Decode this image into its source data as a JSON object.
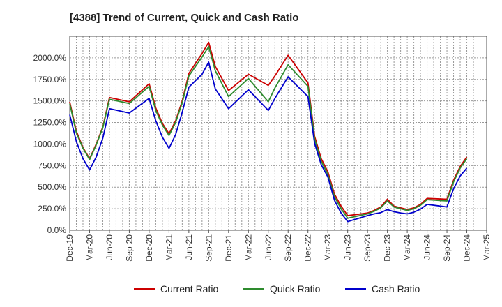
{
  "chart_data": {
    "type": "line",
    "title": "[4388]  Trend of Current, Quick and Cash Ratio",
    "xlabel": "",
    "ylabel": "",
    "ylim": [
      0,
      2250
    ],
    "yticks": [
      0,
      250,
      500,
      750,
      1000,
      1250,
      1500,
      1750,
      2000
    ],
    "ytick_labels": [
      "0.0%",
      "250.0%",
      "500.0%",
      "750.0%",
      "1000.0%",
      "1250.0%",
      "1500.0%",
      "1750.0%",
      "2000.0%"
    ],
    "x_count": 64,
    "xtick_indices": [
      0,
      3,
      6,
      9,
      12,
      15,
      18,
      21,
      24,
      27,
      30,
      33,
      36,
      39,
      42,
      45,
      48,
      51,
      54,
      57,
      60,
      63
    ],
    "xtick_labels": [
      "Dec-19",
      "Mar-20",
      "Jun-20",
      "Sep-20",
      "Dec-20",
      "Mar-21",
      "Jun-21",
      "Sep-21",
      "Dec-21",
      "Mar-22",
      "Jun-22",
      "Sep-22",
      "Dec-22",
      "Mar-23",
      "Jun-23",
      "Sep-23",
      "Dec-23",
      "Mar-24",
      "Jun-24",
      "Sep-24",
      "Dec-24",
      "Mar-25"
    ],
    "grid": true,
    "legend_position": "bottom",
    "series": [
      {
        "name": "Current Ratio",
        "color": "#cc0000",
        "points": [
          [
            0,
            1490
          ],
          [
            1,
            1150
          ],
          [
            2,
            960
          ],
          [
            3,
            830
          ],
          [
            4,
            1000
          ],
          [
            5,
            1200
          ],
          [
            6,
            1540
          ],
          [
            9,
            1490
          ],
          [
            12,
            1700
          ],
          [
            13,
            1420
          ],
          [
            14,
            1240
          ],
          [
            15,
            1120
          ],
          [
            16,
            1270
          ],
          [
            17,
            1500
          ],
          [
            18,
            1820
          ],
          [
            20,
            2050
          ],
          [
            21,
            2180
          ],
          [
            22,
            1900
          ],
          [
            24,
            1620
          ],
          [
            27,
            1810
          ],
          [
            30,
            1680
          ],
          [
            31,
            1790
          ],
          [
            33,
            2030
          ],
          [
            36,
            1710
          ],
          [
            37,
            1090
          ],
          [
            38,
            830
          ],
          [
            39,
            680
          ],
          [
            40,
            420
          ],
          [
            41,
            280
          ],
          [
            42,
            170
          ],
          [
            45,
            200
          ],
          [
            46,
            230
          ],
          [
            47,
            270
          ],
          [
            48,
            360
          ],
          [
            49,
            280
          ],
          [
            50,
            260
          ],
          [
            51,
            240
          ],
          [
            52,
            260
          ],
          [
            53,
            300
          ],
          [
            54,
            370
          ],
          [
            57,
            360
          ],
          [
            58,
            580
          ],
          [
            59,
            740
          ],
          [
            60,
            850
          ]
        ]
      },
      {
        "name": "Quick Ratio",
        "color": "#2e8b2e",
        "points": [
          [
            0,
            1470
          ],
          [
            1,
            1130
          ],
          [
            2,
            950
          ],
          [
            3,
            820
          ],
          [
            4,
            990
          ],
          [
            5,
            1190
          ],
          [
            6,
            1520
          ],
          [
            9,
            1470
          ],
          [
            12,
            1670
          ],
          [
            13,
            1390
          ],
          [
            14,
            1220
          ],
          [
            15,
            1100
          ],
          [
            16,
            1250
          ],
          [
            17,
            1480
          ],
          [
            18,
            1790
          ],
          [
            20,
            2010
          ],
          [
            21,
            2130
          ],
          [
            22,
            1850
          ],
          [
            24,
            1550
          ],
          [
            27,
            1760
          ],
          [
            30,
            1490
          ],
          [
            31,
            1650
          ],
          [
            33,
            1920
          ],
          [
            36,
            1670
          ],
          [
            37,
            1060
          ],
          [
            38,
            800
          ],
          [
            39,
            650
          ],
          [
            40,
            390
          ],
          [
            41,
            250
          ],
          [
            42,
            140
          ],
          [
            45,
            190
          ],
          [
            46,
            220
          ],
          [
            47,
            260
          ],
          [
            48,
            340
          ],
          [
            49,
            270
          ],
          [
            50,
            250
          ],
          [
            51,
            230
          ],
          [
            52,
            250
          ],
          [
            53,
            290
          ],
          [
            54,
            355
          ],
          [
            57,
            340
          ],
          [
            58,
            560
          ],
          [
            59,
            720
          ],
          [
            60,
            830
          ]
        ]
      },
      {
        "name": "Cash Ratio",
        "color": "#0000cc",
        "points": [
          [
            0,
            1340
          ],
          [
            1,
            1030
          ],
          [
            2,
            830
          ],
          [
            3,
            700
          ],
          [
            4,
            850
          ],
          [
            5,
            1070
          ],
          [
            6,
            1410
          ],
          [
            9,
            1360
          ],
          [
            12,
            1530
          ],
          [
            13,
            1270
          ],
          [
            14,
            1080
          ],
          [
            15,
            950
          ],
          [
            16,
            1110
          ],
          [
            17,
            1370
          ],
          [
            18,
            1660
          ],
          [
            20,
            1810
          ],
          [
            21,
            1950
          ],
          [
            22,
            1640
          ],
          [
            24,
            1410
          ],
          [
            27,
            1630
          ],
          [
            30,
            1390
          ],
          [
            31,
            1530
          ],
          [
            33,
            1780
          ],
          [
            36,
            1550
          ],
          [
            37,
            1010
          ],
          [
            38,
            760
          ],
          [
            39,
            620
          ],
          [
            40,
            350
          ],
          [
            41,
            200
          ],
          [
            42,
            100
          ],
          [
            45,
            170
          ],
          [
            46,
            190
          ],
          [
            47,
            205
          ],
          [
            48,
            240
          ],
          [
            49,
            215
          ],
          [
            50,
            200
          ],
          [
            51,
            190
          ],
          [
            52,
            210
          ],
          [
            53,
            245
          ],
          [
            54,
            300
          ],
          [
            57,
            270
          ],
          [
            58,
            480
          ],
          [
            59,
            630
          ],
          [
            60,
            720
          ]
        ]
      }
    ]
  }
}
